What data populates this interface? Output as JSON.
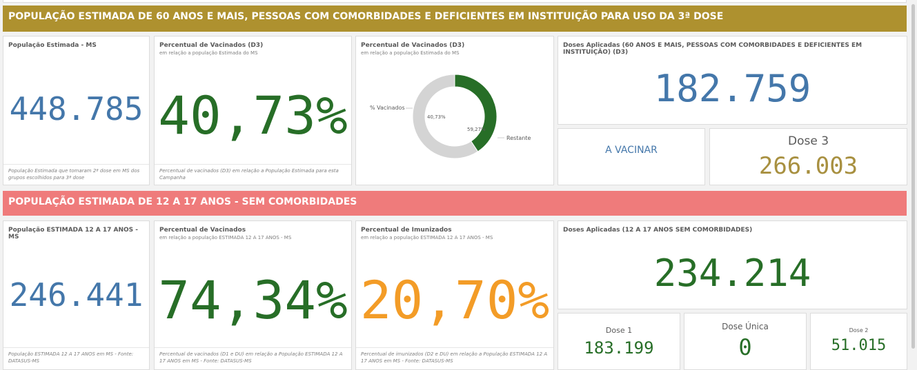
{
  "colors": {
    "banner1": "#ae912f",
    "banner2": "#ef7b7b",
    "blue": "#4477aa",
    "green": "#276e27",
    "orange": "#f39c27",
    "gold": "#a89040",
    "donut_vacinados": "#276e27",
    "donut_restante": "#d4d4d4"
  },
  "section1": {
    "banner": "POPULAÇÃO ESTIMADA DE 60 ANOS E MAIS, PESSOAS COM COMORBIDADES E DEFICIENTES EM INSTITUIÇÃO PARA USO DA 3ª DOSE",
    "pop": {
      "title": "População Estimada - MS",
      "value": "448.785",
      "footer": "População Estimada que tomaram 2ª dose em MS dos grupos escolhidos para 3ª dose"
    },
    "pct": {
      "title": "Percentual de Vacinados (D3)",
      "subtitle": "em relação a população Estimada do MS",
      "value": "40,73%",
      "footer": "Percentual de vacinados (D3) em relação a População Estimada para esta Campanha"
    },
    "donut": {
      "title": "Percentual de Vacinados (D3)",
      "subtitle": "em relação a população Estimada do MS",
      "label_vacinados": "% Vacinados",
      "label_restante": "Restante",
      "value_vacinados_label": "40,73%",
      "value_restante_label": "59,27%"
    },
    "doses": {
      "title": "Doses Aplicadas (60 ANOS E MAIS, PESSOAS COM COMORBIDADES E DEFICIENTES EM INSTITUIÇÃO) (D3)",
      "value": "182.759"
    },
    "a_vacinar": "A VACINAR",
    "dose3": {
      "label": "Dose 3",
      "value": "266.003"
    }
  },
  "section2": {
    "banner": "POPULAÇÃO ESTIMADA DE 12 A 17 ANOS - SEM COMORBIDADES",
    "pop": {
      "title": "População ESTIMADA 12 A 17 ANOS - MS",
      "value": "246.441",
      "footer": "População ESTIMADA 12 A 17 ANOS em MS - Fonte: DATASUS-MS"
    },
    "pct_vac": {
      "title": "Percentual de Vacinados",
      "subtitle": "em relação a população ESTIMADA 12 A 17 ANOS - MS",
      "value": "74,34%",
      "footer": "Percentual de vacinados (D1 e DU) em relação a População ESTIMADA 12 A 17 ANOS em MS - Fonte: DATASUS-MS"
    },
    "pct_imu": {
      "title": "Percentual de Imunizados",
      "subtitle": "em relação a população ESTIMADA 12 A 17 ANOS - MS",
      "value": "20,70%",
      "footer": "Percentual de imunizados (D2 e DU) em relação a População ESTIMADA 12 A 17 ANOS em MS - Fonte: DATASUS-MS"
    },
    "doses": {
      "title": "Doses Aplicadas (12 A 17 ANOS SEM COMORBIDADES)",
      "value": "234.214"
    },
    "dose1": {
      "label": "Dose 1",
      "value": "183.199"
    },
    "dose_unica": {
      "label": "Dose Única",
      "value": "0"
    },
    "dose2": {
      "label": "Dose 2",
      "value": "51.015"
    }
  },
  "chart_data": {
    "type": "pie",
    "categories": [
      "% Vacinados",
      "Restante"
    ],
    "values": [
      40.73,
      59.27
    ],
    "title": "Percentual de Vacinados (D3)"
  }
}
